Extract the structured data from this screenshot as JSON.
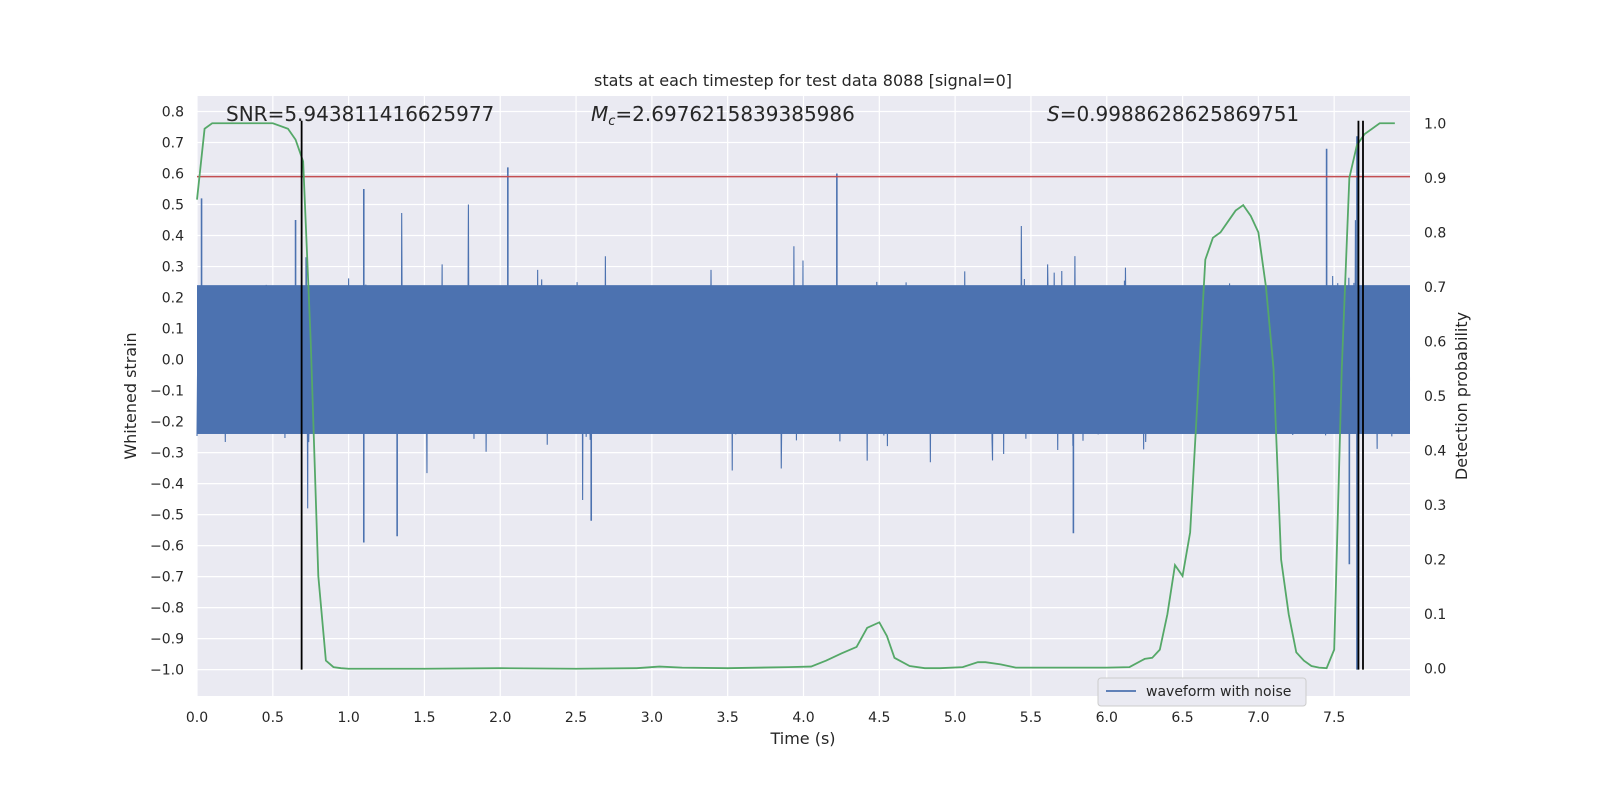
{
  "chart_data": {
    "type": "line",
    "title": "stats at each timestep for test data 8088 [signal=0]",
    "xlabel": "Time (s)",
    "ylabel": "Whitened strain",
    "y2label": "Detection probability",
    "xlim": [
      0.0,
      8.0
    ],
    "ylim": [
      -1.085,
      0.85
    ],
    "y2lim": [
      -0.05,
      1.05
    ],
    "xticks": [
      0.0,
      0.5,
      1.0,
      1.5,
      2.0,
      2.5,
      3.0,
      3.5,
      4.0,
      4.5,
      5.0,
      5.5,
      6.0,
      6.5,
      7.0,
      7.5
    ],
    "xtick_labels": [
      "0.0",
      "0.5",
      "1.0",
      "1.5",
      "2.0",
      "2.5",
      "3.0",
      "3.5",
      "4.0",
      "4.5",
      "5.0",
      "5.5",
      "6.0",
      "6.5",
      "7.0",
      "7.5"
    ],
    "yticks": [
      0.8,
      0.7,
      0.6,
      0.5,
      0.4,
      0.3,
      0.2,
      0.1,
      0.0,
      -0.1,
      -0.2,
      -0.3,
      -0.4,
      -0.5,
      -0.6,
      -0.7,
      -0.8,
      -0.9,
      -1.0
    ],
    "ytick_labels": [
      "0.8",
      "0.7",
      "0.6",
      "0.5",
      "0.4",
      "0.3",
      "0.2",
      "0.1",
      "0.0",
      "−0.1",
      "−0.2",
      "−0.3",
      "−0.4",
      "−0.5",
      "−0.6",
      "−0.7",
      "−0.8",
      "−0.9",
      "−1.0"
    ],
    "y2ticks": [
      1.0,
      0.9,
      0.8,
      0.7,
      0.6,
      0.5,
      0.4,
      0.3,
      0.2,
      0.1,
      0.0
    ],
    "y2tick_labels": [
      "1.0",
      "0.9",
      "0.8",
      "0.7",
      "0.6",
      "0.5",
      "0.4",
      "0.3",
      "0.2",
      "0.1",
      "0.0"
    ],
    "grid": true,
    "legend_position": "lower-right",
    "annotations": [
      {
        "key": "snr",
        "prefix": "SNR",
        "value": "=5.943811416625977"
      },
      {
        "key": "mc",
        "prefix": "M",
        "subscript": "c",
        "value": "=2.6976215839385986"
      },
      {
        "key": "s",
        "prefix": "S",
        "value": "=0.9988628625869751"
      }
    ],
    "series": [
      {
        "name": "waveform with noise",
        "axis": "left",
        "color": "#4c72b0",
        "description_envelope": {
          "typical_amplitude": 0.25,
          "peaks": [
            [
              0.03,
              0.52
            ],
            [
              0.65,
              0.45
            ],
            [
              0.72,
              0.33
            ],
            [
              1.1,
              0.55
            ],
            [
              2.05,
              0.62
            ],
            [
              4.22,
              0.6
            ],
            [
              7.45,
              0.68
            ],
            [
              7.65,
              0.72
            ],
            [
              1.1,
              -0.59
            ],
            [
              1.32,
              -0.57
            ],
            [
              2.6,
              -0.52
            ],
            [
              5.78,
              -0.56
            ],
            [
              7.6,
              -0.66
            ],
            [
              7.65,
              -1.0
            ]
          ]
        }
      },
      {
        "name": "",
        "axis": "right",
        "color": "#55a868",
        "x": [
          0.0,
          0.05,
          0.1,
          0.2,
          0.3,
          0.4,
          0.5,
          0.6,
          0.65,
          0.7,
          0.75,
          0.8,
          0.85,
          0.9,
          0.95,
          1.0,
          1.5,
          2.0,
          2.5,
          2.9,
          3.05,
          3.2,
          3.5,
          3.9,
          4.05,
          4.15,
          4.25,
          4.35,
          4.42,
          4.5,
          4.55,
          4.6,
          4.7,
          4.8,
          4.9,
          5.05,
          5.15,
          5.2,
          5.3,
          5.4,
          5.6,
          5.8,
          6.0,
          6.15,
          6.25,
          6.3,
          6.35,
          6.4,
          6.45,
          6.5,
          6.55,
          6.6,
          6.65,
          6.7,
          6.75,
          6.8,
          6.85,
          6.9,
          6.95,
          7.0,
          7.05,
          7.1,
          7.15,
          7.2,
          7.25,
          7.3,
          7.35,
          7.4,
          7.45,
          7.5,
          7.55,
          7.6,
          7.65,
          7.7,
          7.75,
          7.8,
          7.85,
          7.9
        ],
        "values": [
          0.86,
          0.99,
          1.0,
          1.0,
          1.0,
          1.0,
          1.0,
          0.99,
          0.97,
          0.93,
          0.6,
          0.17,
          0.015,
          0.003,
          0.001,
          0.0,
          0.0,
          0.001,
          0.0,
          0.001,
          0.004,
          0.002,
          0.001,
          0.003,
          0.004,
          0.015,
          0.028,
          0.04,
          0.075,
          0.085,
          0.06,
          0.02,
          0.005,
          0.001,
          0.001,
          0.003,
          0.012,
          0.012,
          0.008,
          0.002,
          0.002,
          0.002,
          0.002,
          0.003,
          0.018,
          0.02,
          0.035,
          0.1,
          0.19,
          0.17,
          0.25,
          0.5,
          0.75,
          0.79,
          0.8,
          0.82,
          0.84,
          0.85,
          0.83,
          0.8,
          0.7,
          0.55,
          0.2,
          0.1,
          0.03,
          0.015,
          0.005,
          0.002,
          0.001,
          0.035,
          0.55,
          0.9,
          0.96,
          0.98,
          0.99,
          1.0,
          1.0,
          1.0
        ]
      }
    ],
    "hlines": [
      {
        "axis": "left",
        "y": 0.59,
        "color": "#c44e52"
      }
    ],
    "vlines": [
      {
        "x": 0.69,
        "axis_range": [
          -1.0,
          0.77
        ],
        "color": "#000000"
      },
      {
        "x": 7.66,
        "axis_range": [
          -1.0,
          0.77
        ],
        "color": "#000000"
      },
      {
        "x": 7.69,
        "axis_range": [
          -1.0,
          0.77
        ],
        "color": "#000000"
      }
    ],
    "legend": [
      {
        "label": "waveform with noise",
        "color": "#4c72b0"
      }
    ]
  },
  "colors": {
    "plot_bg": "#eaeaf2",
    "grid": "#ffffff",
    "waveform": "#4c72b0",
    "probability": "#55a868",
    "threshold": "#c44e52",
    "marker": "#000000"
  }
}
